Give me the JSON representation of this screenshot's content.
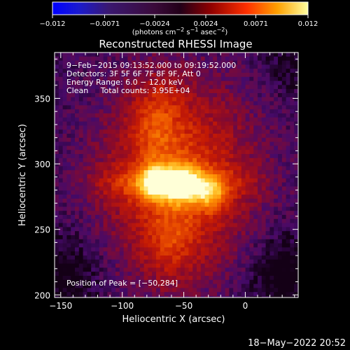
{
  "chart_data": {
    "type": "heatmap",
    "title": "Reconstructed RHESSI Image",
    "xlabel": "Heliocentric X (arcsec)",
    "ylabel": "Heliocentric Y (arcsec)",
    "xlim": [
      -155,
      43
    ],
    "ylim": [
      198,
      385
    ],
    "x_ticks": [
      -150,
      -100,
      -50,
      0
    ],
    "x_tick_labels": [
      "−150",
      "−100",
      "−50",
      "0"
    ],
    "y_ticks": [
      200,
      250,
      300,
      350
    ],
    "y_tick_labels": [
      "200",
      "250",
      "300",
      "350"
    ],
    "colorbar": {
      "range": [
        -0.012,
        0.012
      ],
      "ticks": [
        -0.012,
        -0.0071,
        -0.0024,
        0.0024,
        0.0071,
        0.012
      ],
      "tick_labels": [
        "−0.012",
        "−0.0071",
        "−0.0024",
        "0.0024",
        "0.0071",
        "0.012"
      ],
      "unit_prefix": "(photons cm",
      "unit_exp1": "−2",
      "unit_mid": " s",
      "unit_exp2": "−1",
      "unit_mid2": " asec",
      "unit_exp3": "−2",
      "unit_suffix": ")"
    },
    "info_lines": [
      "9−Feb−2015 09:13:52.000 to 09:19:52.000",
      "Detectors: 3F 5F 6F 7F 8F 9F, Att 0",
      "Energy Range: 6.0 − 12.0 keV",
      "Clean     Total counts: 3.95E+04"
    ],
    "peak_label": "Position of Peak = [−50,284]",
    "peak": [
      -50,
      284
    ],
    "sources": [
      {
        "x": -50,
        "y": 284,
        "peak": 0.012
      },
      {
        "x": -72,
        "y": 286,
        "peak": 0.0112
      },
      {
        "x": -28,
        "y": 276,
        "peak": 0.0088
      }
    ],
    "grid": false
  },
  "footer": {
    "timestamp": "18−May−2022 20:52"
  }
}
